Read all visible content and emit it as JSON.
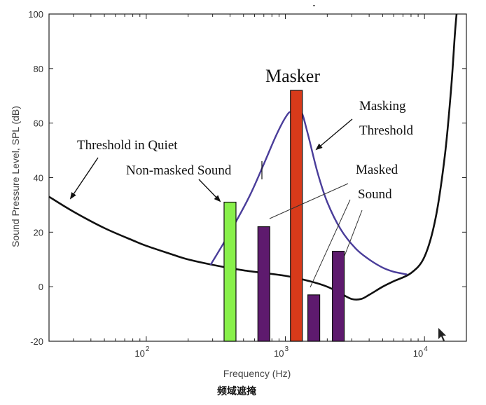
{
  "chart_data": {
    "type": "bar",
    "xlabel": "Frequency (Hz)",
    "ylabel": "Sound Pressure Level, SPL (dB)",
    "caption": "频域遮掩",
    "xscale": "log",
    "xlim": [
      20,
      20000
    ],
    "ylim": [
      -20,
      100
    ],
    "yticks": [
      "-20",
      "0",
      "20",
      "40",
      "60",
      "80",
      "100"
    ],
    "xticks": [
      {
        "value": 100,
        "base": "10",
        "exp": "2"
      },
      {
        "value": 1000,
        "base": "10",
        "exp": "3"
      },
      {
        "value": 10000,
        "base": "10",
        "exp": "4"
      }
    ],
    "bars": [
      {
        "label": "Non-masked Sound",
        "x": 400,
        "value": 31,
        "color": "#88f04a"
      },
      {
        "label": "Masked Sound",
        "x": 700,
        "value": 22,
        "color": "#5e1a6e"
      },
      {
        "label": "Masker",
        "x": 1200,
        "value": 72,
        "color": "#d83a1a"
      },
      {
        "label": "Masked Sound",
        "x": 1600,
        "value": -3,
        "color": "#5e1a6e"
      },
      {
        "label": "Masked Sound",
        "x": 2400,
        "value": 13,
        "color": "#5e1a6e"
      }
    ],
    "series": [
      {
        "name": "Threshold in Quiet",
        "color": "#111111",
        "points": [
          [
            20,
            33
          ],
          [
            30,
            27.5
          ],
          [
            50,
            21.5
          ],
          [
            80,
            17
          ],
          [
            100,
            15
          ],
          [
            150,
            12
          ],
          [
            200,
            10
          ],
          [
            300,
            8
          ],
          [
            500,
            6
          ],
          [
            1000,
            4
          ],
          [
            1500,
            2
          ],
          [
            2000,
            0
          ],
          [
            2500,
            -2.5
          ],
          [
            3000,
            -4.5
          ],
          [
            3500,
            -4.5
          ],
          [
            4000,
            -3
          ],
          [
            5000,
            0
          ],
          [
            6000,
            2
          ],
          [
            8000,
            5
          ],
          [
            10000,
            11
          ],
          [
            12000,
            25
          ],
          [
            14000,
            48
          ],
          [
            15500,
            72
          ],
          [
            16500,
            92
          ],
          [
            17000,
            100
          ]
        ]
      },
      {
        "name": "Masking Threshold",
        "color": "#4a3d9a",
        "points": [
          [
            290,
            8
          ],
          [
            400,
            20
          ],
          [
            550,
            33
          ],
          [
            700,
            45
          ],
          [
            850,
            55
          ],
          [
            1000,
            62
          ],
          [
            1100,
            64
          ],
          [
            1200,
            60
          ],
          [
            1300,
            64
          ],
          [
            1450,
            56
          ],
          [
            1700,
            42
          ],
          [
            2000,
            31
          ],
          [
            2500,
            21
          ],
          [
            3200,
            14
          ],
          [
            4000,
            10
          ],
          [
            5000,
            7
          ],
          [
            6000,
            5.5
          ],
          [
            7500,
            4.5
          ]
        ]
      }
    ],
    "annotations": {
      "masker": "Masker",
      "masking_threshold_1": "Masking",
      "masking_threshold_2": "Threshold",
      "threshold_quiet": "Threshold in Quiet",
      "non_masked": "Non-masked Sound",
      "masked_1": "Masked",
      "masked_2": "Sound"
    }
  }
}
